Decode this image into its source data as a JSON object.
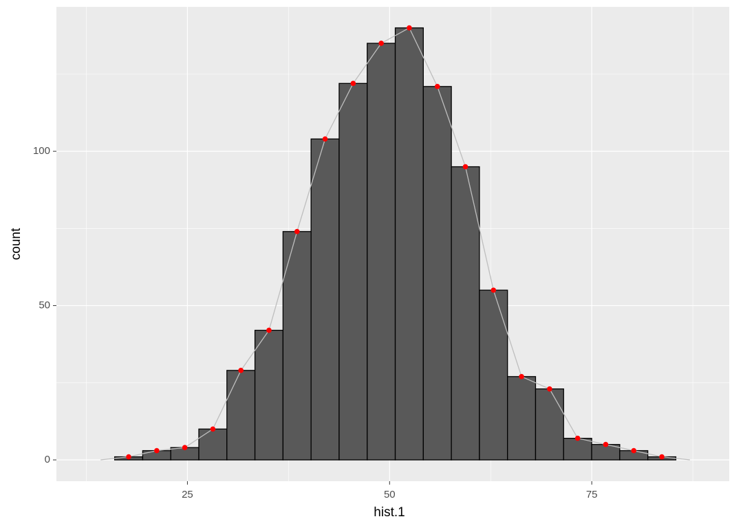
{
  "chart_data": {
    "type": "histogram",
    "x_label": "hist.1",
    "y_label": "count",
    "bins": [
      16.0,
      19.47,
      22.94,
      26.41,
      29.88,
      33.35,
      36.82,
      40.29,
      43.76,
      47.23,
      50.7,
      54.17,
      57.64,
      61.11,
      64.58,
      68.05,
      71.52,
      74.99,
      78.46,
      81.93,
      85.4
    ],
    "values": [
      1,
      3,
      4,
      10,
      29,
      42,
      74,
      104,
      122,
      135,
      140,
      121,
      95,
      55,
      27,
      23,
      7,
      5,
      3,
      1
    ],
    "color": "#595959",
    "edge_color": "#000000",
    "line_color": "#bebebe",
    "point_color": "#ff0000",
    "xlim": [
      8.8,
      92.0
    ],
    "ylim": [
      -6.9,
      146.8
    ],
    "xticks": [
      25,
      50,
      75
    ],
    "yticks": [
      0,
      50,
      100
    ],
    "xminor": [
      12.5,
      37.5,
      62.5,
      87.5
    ],
    "yminor": [
      25,
      75,
      125
    ],
    "grid": true
  }
}
